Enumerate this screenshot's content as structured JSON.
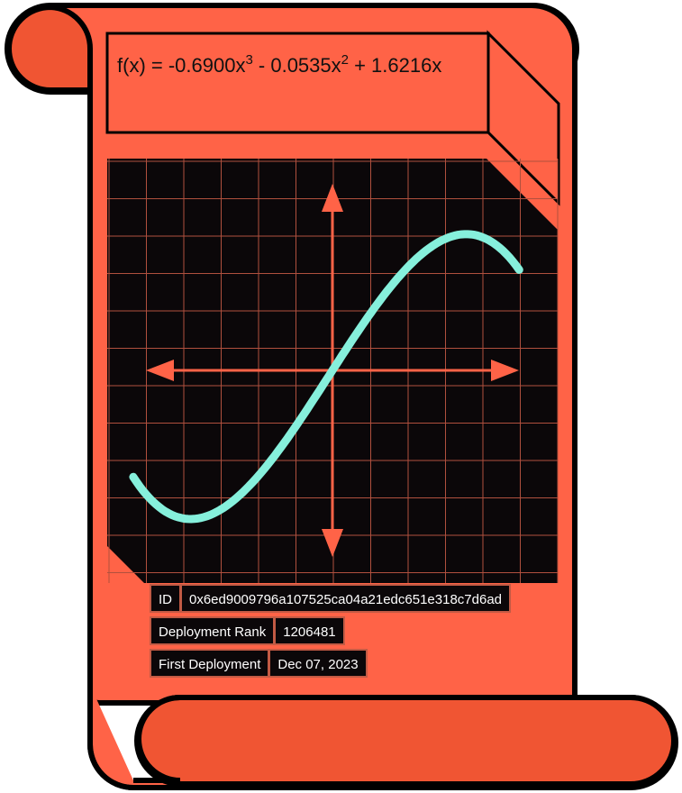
{
  "formula": {
    "prefix": "f(x) = -0.6900x",
    "exp1": "3",
    "middle": " - 0.0535x",
    "exp2": "2",
    "suffix": " + 1.6216x"
  },
  "chart_data": {
    "type": "line",
    "coefficients": {
      "a3": -0.69,
      "a2": -0.0535,
      "a1": 1.6216,
      "a0": 0
    },
    "series": [
      {
        "values": "f(x) = -0.6900x^3 - 0.0535x^2 + 1.6216x"
      }
    ],
    "grid": true,
    "colors": {
      "curve": "#86f0dc",
      "axes": "#ff6347",
      "grid": "#b0503e",
      "background": "#0b0709"
    }
  },
  "details": {
    "rows": [
      {
        "label": "ID",
        "value": "0x6ed9009796a107525ca04a21edc651e318c7d6ad"
      },
      {
        "label": "Deployment Rank",
        "value": "1206481"
      },
      {
        "label": "First Deployment",
        "value": "Dec 07, 2023"
      }
    ]
  },
  "colors": {
    "scroll": "#ff6347",
    "scroll_dark": "#f05533",
    "outline": "#000000"
  }
}
